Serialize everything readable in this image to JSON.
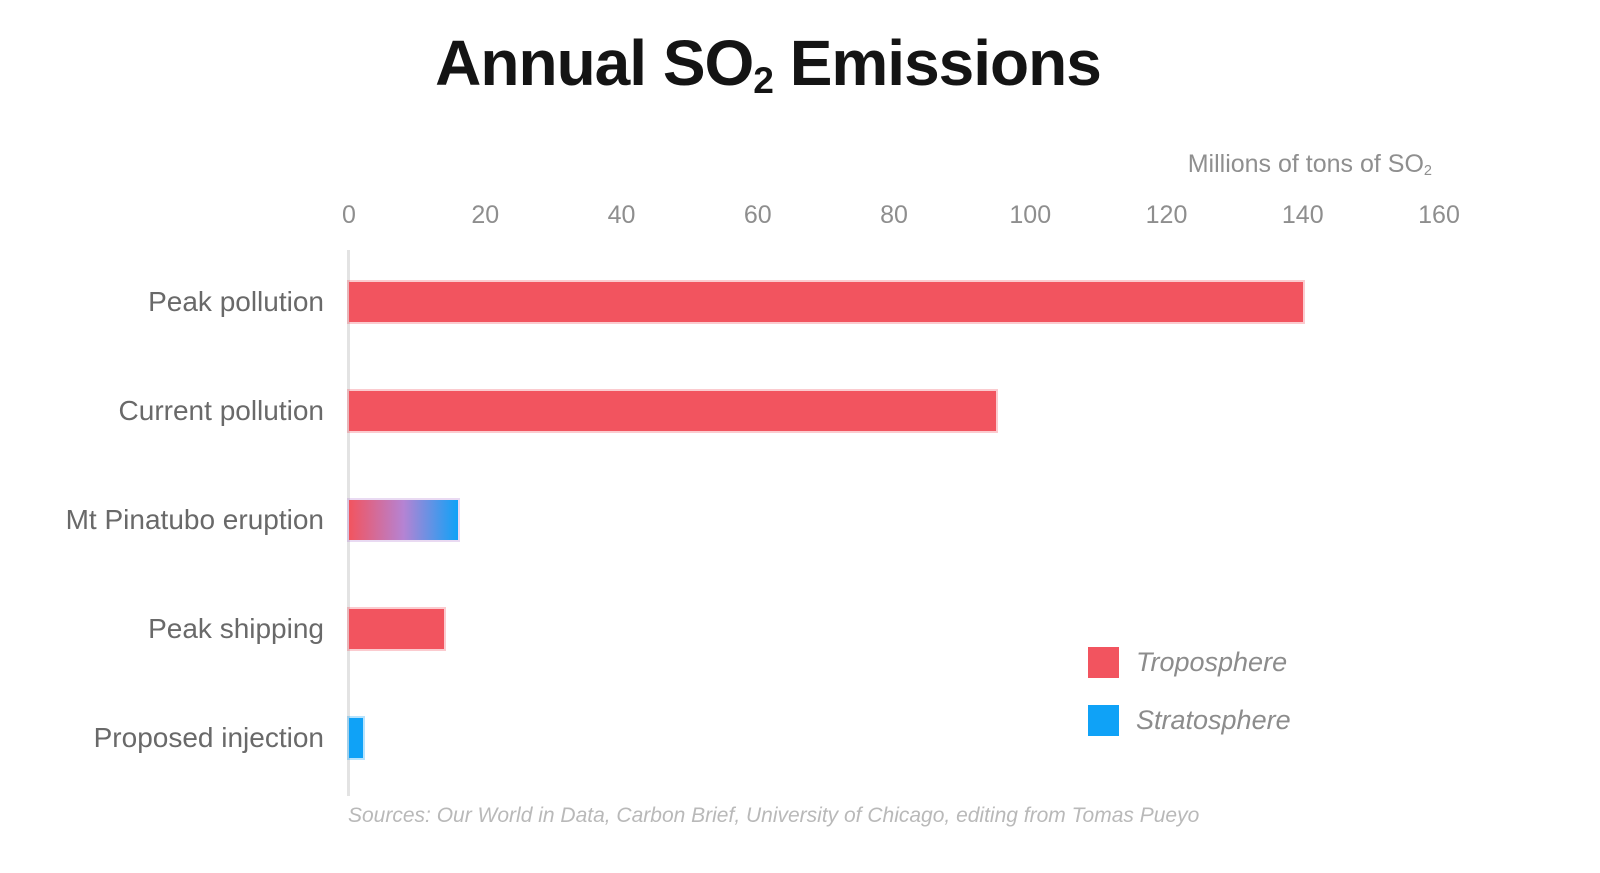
{
  "title": {
    "pre": "Annual SO",
    "sub": "2",
    "post": " Emissions"
  },
  "source": "Sources: Our World in Data, Carbon Brief, University of Chicago, editing from Tomas Pueyo",
  "colors": {
    "troposphere": "#F2545F",
    "stratosphere": "#0FA2F7",
    "gradient_mid": "#B583D3",
    "axis_line": "#e3e3e3"
  },
  "chart_data": {
    "type": "bar",
    "orientation": "horizontal",
    "title": "Annual SO2 Emissions",
    "unit_label": {
      "pre": "Millions of tons of SO",
      "sub": "2"
    },
    "xlabel": "Millions of tons of SO2",
    "ylabel": "",
    "xlim": [
      0,
      160
    ],
    "ticks": [
      0,
      20,
      40,
      60,
      80,
      100,
      120,
      140,
      160
    ],
    "grid": false,
    "categories": [
      "Peak pollution",
      "Current pollution",
      "Mt Pinatubo eruption",
      "Peak shipping",
      "Proposed injection"
    ],
    "values": [
      140,
      95,
      16,
      14,
      2
    ],
    "rows": [
      {
        "label": "Peak pollution",
        "value": 140,
        "series": "troposphere"
      },
      {
        "label": "Current pollution",
        "value": 95,
        "series": "troposphere"
      },
      {
        "label": "Mt Pinatubo eruption",
        "value": 16,
        "series": "gradient"
      },
      {
        "label": "Peak shipping",
        "value": 14,
        "series": "troposphere"
      },
      {
        "label": "Proposed injection",
        "value": 2,
        "series": "stratosphere"
      }
    ],
    "legend": {
      "position": "right-middle",
      "items": [
        {
          "label": "Troposphere",
          "series": "troposphere"
        },
        {
          "label": "Stratosphere",
          "series": "stratosphere"
        }
      ]
    }
  }
}
